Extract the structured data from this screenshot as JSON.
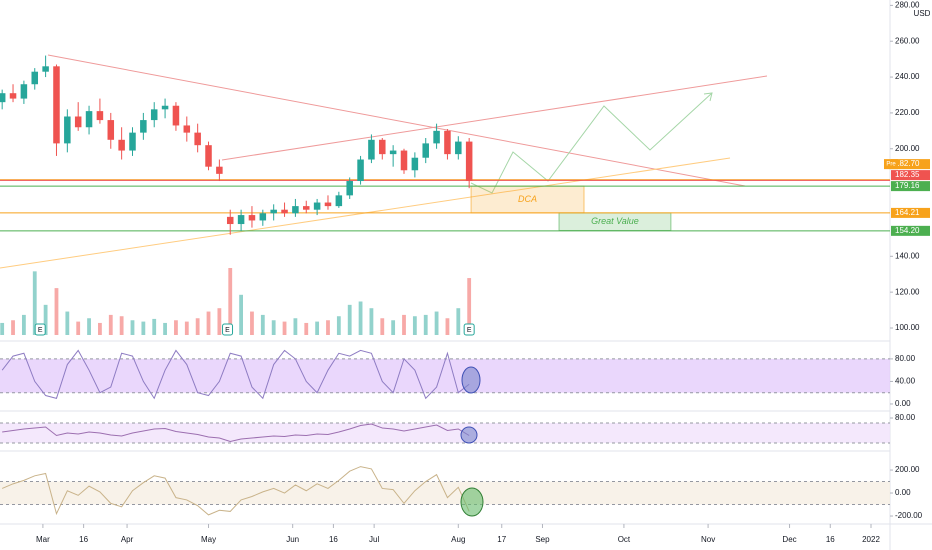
{
  "chart_data": {
    "type": "candlestick",
    "x": [
      45,
      49,
      53,
      57,
      61,
      65,
      69,
      73,
      77,
      81,
      85,
      89,
      93,
      97,
      101,
      105,
      109,
      113,
      117,
      121,
      125,
      129,
      133,
      137,
      141,
      145,
      149,
      153,
      157,
      161,
      165,
      169,
      173,
      177,
      181,
      185,
      189,
      193,
      197,
      201,
      205,
      209,
      213,
      217
    ],
    "open": [
      226,
      231,
      228,
      236,
      243,
      246,
      203,
      218,
      212,
      221,
      216,
      205,
      199,
      209,
      216,
      222,
      224,
      213,
      209,
      202,
      190,
      162,
      158,
      163,
      160,
      164,
      166,
      164,
      168,
      166,
      170,
      168,
      174,
      182,
      194,
      205,
      197,
      199,
      188,
      195,
      203,
      210,
      197,
      204
    ],
    "high": [
      233,
      236,
      238,
      245,
      252,
      247,
      222,
      226,
      224,
      228,
      220,
      212,
      212,
      220,
      226,
      228,
      226,
      218,
      214,
      204,
      194,
      166,
      166,
      168,
      166,
      169,
      170,
      172,
      171,
      172,
      174,
      176,
      184,
      196,
      208,
      206,
      202,
      200,
      198,
      206,
      214,
      211,
      207,
      206
    ],
    "low": [
      222,
      226,
      225,
      233,
      240,
      196,
      198,
      210,
      208,
      214,
      200,
      194,
      196,
      205,
      212,
      217,
      210,
      204,
      198,
      188,
      182,
      152,
      154,
      156,
      157,
      160,
      162,
      162,
      164,
      163,
      166,
      167,
      172,
      180,
      192,
      194,
      190,
      186,
      184,
      192,
      200,
      194,
      194,
      178
    ],
    "close": [
      231,
      228,
      236,
      243,
      246,
      203,
      218,
      212,
      221,
      216,
      205,
      199,
      209,
      216,
      222,
      224,
      213,
      209,
      202,
      190,
      186,
      158,
      163,
      160,
      164,
      166,
      164,
      168,
      166,
      170,
      168,
      174,
      182,
      194,
      205,
      197,
      199,
      188,
      195,
      203,
      210,
      197,
      204,
      182
    ],
    "volume": [
      18,
      22,
      30,
      95,
      45,
      70,
      35,
      20,
      25,
      18,
      30,
      28,
      22,
      20,
      24,
      18,
      22,
      20,
      25,
      35,
      40,
      100,
      60,
      35,
      30,
      22,
      20,
      25,
      18,
      20,
      22,
      28,
      45,
      50,
      40,
      25,
      22,
      30,
      28,
      30,
      35,
      25,
      40,
      85
    ],
    "volume_lim": [
      0,
      100
    ],
    "xlim": [
      44.2,
      372
    ],
    "xticks": [
      {
        "value": 60,
        "label": "Mar"
      },
      {
        "value": 75,
        "label": "16"
      },
      {
        "value": 91,
        "label": "Apr"
      },
      {
        "value": 121,
        "label": "May"
      },
      {
        "value": 152,
        "label": "Jun"
      },
      {
        "value": 167,
        "label": "16"
      },
      {
        "value": 182,
        "label": "Jul"
      },
      {
        "value": 213,
        "label": "Aug"
      },
      {
        "value": 229,
        "label": "17"
      },
      {
        "value": 244,
        "label": "Sep"
      },
      {
        "value": 274,
        "label": "Oct"
      },
      {
        "value": 305,
        "label": "Nov"
      },
      {
        "value": 335,
        "label": "Dec"
      },
      {
        "value": 350,
        "label": "16"
      },
      {
        "value": 365,
        "label": "2022"
      }
    ],
    "ylim": [
      93.3,
      283
    ],
    "yticks": [
      {
        "value": 280,
        "label": "280.00"
      },
      {
        "value": 260,
        "label": "260.00"
      },
      {
        "value": 240,
        "label": "240.00"
      },
      {
        "value": 220,
        "label": "220.00"
      },
      {
        "value": 200,
        "label": "200.00"
      },
      {
        "value": 140,
        "label": "140.00"
      },
      {
        "value": 120,
        "label": "120.00"
      },
      {
        "value": 100,
        "label": "100.00"
      }
    ],
    "currency": "USD",
    "up_color": "#26a69a",
    "down_color": "#ef5350",
    "pre_label": "Pre",
    "levels": [
      {
        "value": 182.7,
        "label": "182.70",
        "color": "#f7a21b"
      },
      {
        "value": 182.35,
        "label": "182.35",
        "color": "#ef5350"
      },
      {
        "value": 179.16,
        "label": "179.16",
        "color": "#4caf50"
      },
      {
        "value": 164.21,
        "label": "164.21",
        "color": "#f7a21b"
      },
      {
        "value": 154.2,
        "label": "154.20",
        "color": "#4caf50"
      }
    ],
    "zones": [
      {
        "label": "DCA",
        "x": [
          217.7,
          259.3
        ],
        "y": [
          164.21,
          179.16
        ],
        "color": "#f7a21b"
      },
      {
        "label": "Great Value",
        "x": [
          250.1,
          291.3
        ],
        "y": [
          154.4,
          164.21
        ],
        "color": "#4caf50"
      }
    ],
    "earnings": [
      {
        "x": 59,
        "label": "E"
      },
      {
        "x": 128,
        "label": "E"
      },
      {
        "x": 217,
        "label": "E"
      }
    ],
    "indicators": [
      {
        "values": [
          60,
          85,
          90,
          40,
          15,
          10,
          70,
          95,
          60,
          20,
          30,
          90,
          85,
          40,
          10,
          60,
          95,
          70,
          20,
          15,
          40,
          90,
          85,
          30,
          10,
          70,
          95,
          80,
          40,
          20,
          60,
          90,
          85,
          95,
          90,
          40,
          20,
          80,
          60,
          10,
          30,
          90,
          20,
          35
        ],
        "ylim": [
          -10.7,
          110
        ],
        "yticks": [
          {
            "value": 80,
            "label": "80.00"
          },
          {
            "value": 40,
            "label": "40.00"
          },
          {
            "value": 0,
            "label": "0.00"
          }
        ],
        "band": [
          20,
          80
        ],
        "color": "#8e7cc3",
        "band_color": "#e5cdfb"
      },
      {
        "values": [
          52,
          55,
          58,
          60,
          62,
          45,
          50,
          48,
          52,
          50,
          46,
          44,
          50,
          54,
          58,
          59,
          53,
          50,
          47,
          42,
          40,
          33,
          38,
          40,
          42,
          44,
          43,
          46,
          45,
          48,
          47,
          52,
          58,
          65,
          68,
          60,
          58,
          54,
          58,
          62,
          66,
          55,
          58,
          45
        ],
        "ylim": [
          16,
          92
        ],
        "yticks": [
          {
            "value": 80,
            "label": "80.00"
          }
        ],
        "band": [
          30,
          70
        ],
        "color": "#9c6fb0",
        "band_color": "#f1e2fb"
      },
      {
        "values": [
          40,
          80,
          110,
          150,
          170,
          -180,
          20,
          -20,
          60,
          10,
          -90,
          -120,
          20,
          90,
          150,
          130,
          -40,
          -60,
          -110,
          -190,
          -150,
          -160,
          -60,
          -30,
          10,
          40,
          0,
          70,
          20,
          80,
          40,
          110,
          190,
          230,
          210,
          40,
          30,
          -90,
          20,
          100,
          160,
          -40,
          50,
          -160
        ],
        "ylim": [
          -252,
          357
        ],
        "yticks": [
          {
            "value": 200,
            "label": "200.00"
          },
          {
            "value": 0,
            "label": "0.00"
          },
          {
            "value": -200,
            "label": "-200.00"
          }
        ],
        "band": [
          -100,
          100
        ],
        "color": "#c9b38a",
        "band_color": "#f6efe3"
      }
    ]
  }
}
